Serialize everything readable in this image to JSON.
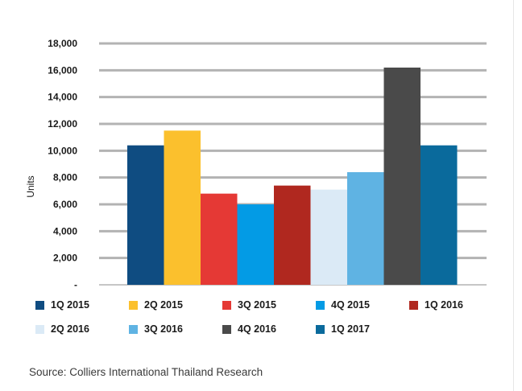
{
  "chart_data": {
    "type": "bar",
    "title": "",
    "ylabel": "Units",
    "xlabel": "",
    "ylim": [
      0,
      18000
    ],
    "yticks": [
      0,
      2000,
      4000,
      6000,
      8000,
      10000,
      12000,
      14000,
      16000,
      18000
    ],
    "ytick_labels": [
      "-",
      "2,000",
      "4,000",
      "6,000",
      "8,000",
      "10,000",
      "12,000",
      "14,000",
      "16,000",
      "18,000"
    ],
    "grid": true,
    "legend_position": "bottom",
    "categories": [
      "1Q 2015",
      "2Q 2015",
      "3Q 2015",
      "4Q 2015",
      "1Q 2016",
      "2Q 2016",
      "3Q 2016",
      "4Q 2016",
      "1Q 2017"
    ],
    "values": [
      10400,
      11500,
      6800,
      6000,
      7400,
      7100,
      8400,
      16200,
      10400
    ],
    "colors": [
      "#0f4c81",
      "#fbc02d",
      "#e53935",
      "#039be5",
      "#b0281f",
      "#dbeaf6",
      "#5fb3e3",
      "#4a4a4a",
      "#0a6a9c"
    ]
  },
  "source": "Source: Colliers International Thailand Research"
}
